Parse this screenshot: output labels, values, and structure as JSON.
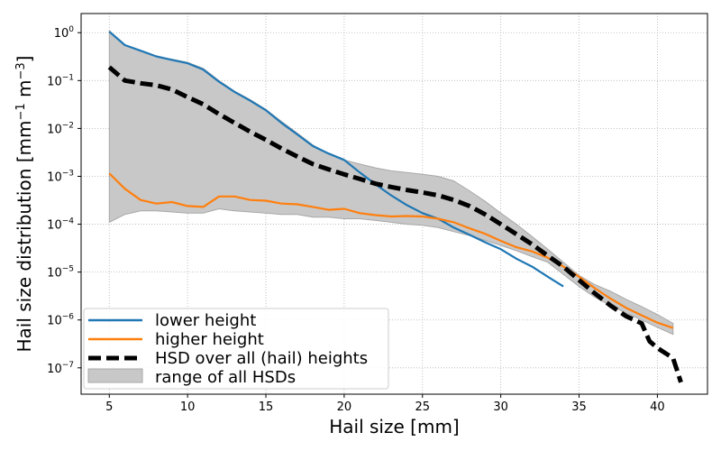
{
  "chart_data": {
    "type": "line",
    "xlabel": "Hail size [mm]",
    "ylabel_main": "Hail size distribution [mm",
    "ylabel_exp1": "−1",
    "ylabel_mid": " m",
    "ylabel_exp2": "−3",
    "ylabel_end": "]",
    "y_scale": "log",
    "xlim": [
      3.2,
      43.2
    ],
    "ylim_log10": [
      -7.55,
      0.4
    ],
    "grid": true,
    "legend_position": "lower-left",
    "x_ticks": [
      5,
      10,
      15,
      20,
      25,
      30,
      35,
      40
    ],
    "x_tick_labels": [
      "5",
      "10",
      "15",
      "20",
      "25",
      "30",
      "35",
      "40"
    ],
    "y_ticks_log10": [
      0,
      -1,
      -2,
      -3,
      -4,
      -5,
      -6,
      -7
    ],
    "y_tick_labels": [
      {
        "base": "10",
        "exp": "0"
      },
      {
        "base": "10",
        "exp": "−1"
      },
      {
        "base": "10",
        "exp": "−2"
      },
      {
        "base": "10",
        "exp": "−3"
      },
      {
        "base": "10",
        "exp": "−4"
      },
      {
        "base": "10",
        "exp": "−5"
      },
      {
        "base": "10",
        "exp": "−6"
      },
      {
        "base": "10",
        "exp": "−7"
      }
    ],
    "range": {
      "name": "range of all HSDs",
      "color": "#c8c8c8",
      "edge_color": "#a8a8a8",
      "x": [
        5,
        6,
        7,
        8,
        9,
        10,
        11,
        12,
        13,
        14,
        15,
        16,
        17,
        18,
        19,
        20,
        21,
        22,
        23,
        24,
        25,
        26,
        27,
        28,
        29,
        30,
        31,
        32,
        33,
        34,
        35,
        36,
        37,
        38,
        39,
        40,
        41
      ],
      "upper": [
        1.1,
        0.55,
        0.42,
        0.32,
        0.28,
        0.24,
        0.18,
        0.1,
        0.06,
        0.04,
        0.025,
        0.014,
        0.008,
        0.0045,
        0.003,
        0.0022,
        0.0018,
        0.0015,
        0.0013,
        0.0012,
        0.0011,
        0.001,
        0.0008,
        0.0005,
        0.0003,
        0.00017,
        0.0001,
        5.5e-05,
        3e-05,
        1.6e-05,
        8.5e-06,
        5.5e-06,
        4e-06,
        2.7e-06,
        1.9e-06,
        1.3e-06,
        8.5e-07
      ],
      "lower": [
        0.00011,
        0.00016,
        0.00019,
        0.00019,
        0.00018,
        0.00017,
        0.00017,
        0.00021,
        0.00019,
        0.00018,
        0.00017,
        0.00016,
        0.00016,
        0.00014,
        0.00014,
        0.00013,
        0.00013,
        0.00012,
        0.00011,
        0.0001,
        9.5e-05,
        8.5e-05,
        7e-05,
        5.8e-05,
        4.6e-05,
        3.6e-05,
        2.8e-05,
        2.1e-05,
        1.6e-05,
        9e-06,
        5e-06,
        3e-06,
        2e-06,
        1.4e-06,
        1e-06,
        7e-07,
        5e-07
      ]
    },
    "series": [
      {
        "name": "lower height",
        "color": "#1f77b4",
        "x": [
          5,
          6,
          7,
          8,
          9,
          10,
          11,
          12,
          13,
          14,
          15,
          16,
          17,
          18,
          19,
          20,
          21,
          22,
          23,
          24,
          25,
          26,
          27,
          28,
          29,
          30,
          31,
          32,
          33,
          34
        ],
        "y": [
          1.05,
          0.55,
          0.42,
          0.32,
          0.27,
          0.23,
          0.17,
          0.095,
          0.058,
          0.038,
          0.024,
          0.013,
          0.0075,
          0.0043,
          0.003,
          0.0022,
          0.0012,
          0.00068,
          0.0004,
          0.00025,
          0.00017,
          0.00013,
          8.5e-05,
          6e-05,
          4.2e-05,
          3e-05,
          1.9e-05,
          1.3e-05,
          8e-06,
          5e-06
        ]
      },
      {
        "name": "higher height",
        "color": "#ff7f0e",
        "x": [
          5,
          6,
          7,
          8,
          9,
          10,
          11,
          12,
          13,
          14,
          15,
          16,
          17,
          18,
          19,
          20,
          21,
          22,
          23,
          24,
          25,
          26,
          27,
          28,
          29,
          30,
          31,
          32,
          33,
          34,
          35,
          36,
          37,
          38,
          39,
          40,
          41
        ],
        "y": [
          0.00115,
          0.00055,
          0.00032,
          0.00027,
          0.00029,
          0.00024,
          0.00023,
          0.00038,
          0.00038,
          0.00032,
          0.00031,
          0.00027,
          0.00026,
          0.00023,
          0.0002,
          0.00021,
          0.00017,
          0.000155,
          0.000145,
          0.000148,
          0.000145,
          0.00013,
          0.00011,
          8.2e-05,
          6.3e-05,
          4.5e-05,
          3.3e-05,
          2.7e-05,
          2e-05,
          1.3e-05,
          8e-06,
          4.6e-06,
          2.8e-06,
          1.8e-06,
          1.25e-06,
          8.8e-07,
          6.8e-07
        ]
      },
      {
        "name": "HSD over all (hail) heights",
        "color": "#000000",
        "dashed": true,
        "x": [
          5,
          6,
          7,
          8,
          9,
          10,
          11,
          12,
          13,
          14,
          15,
          16,
          17,
          18,
          19,
          20,
          21,
          22,
          23,
          24,
          25,
          26,
          27,
          28,
          29,
          30,
          31,
          32,
          33,
          34,
          35,
          36,
          37,
          38,
          39,
          39.5,
          40,
          41,
          41.5
        ],
        "y": [
          0.19,
          0.1,
          0.088,
          0.08,
          0.065,
          0.045,
          0.032,
          0.02,
          0.013,
          0.0085,
          0.0058,
          0.0038,
          0.0026,
          0.0018,
          0.0014,
          0.0011,
          0.00088,
          0.0007,
          0.0006,
          0.00052,
          0.00046,
          0.0004,
          0.00032,
          0.00024,
          0.00016,
          0.0001,
          6.2e-05,
          3.8e-05,
          2.2e-05,
          1.3e-05,
          6.8e-06,
          3.6e-06,
          2e-06,
          1.2e-06,
          8.5e-07,
          3.6e-07,
          2.6e-07,
          1.6e-07,
          5e-08
        ]
      }
    ]
  }
}
